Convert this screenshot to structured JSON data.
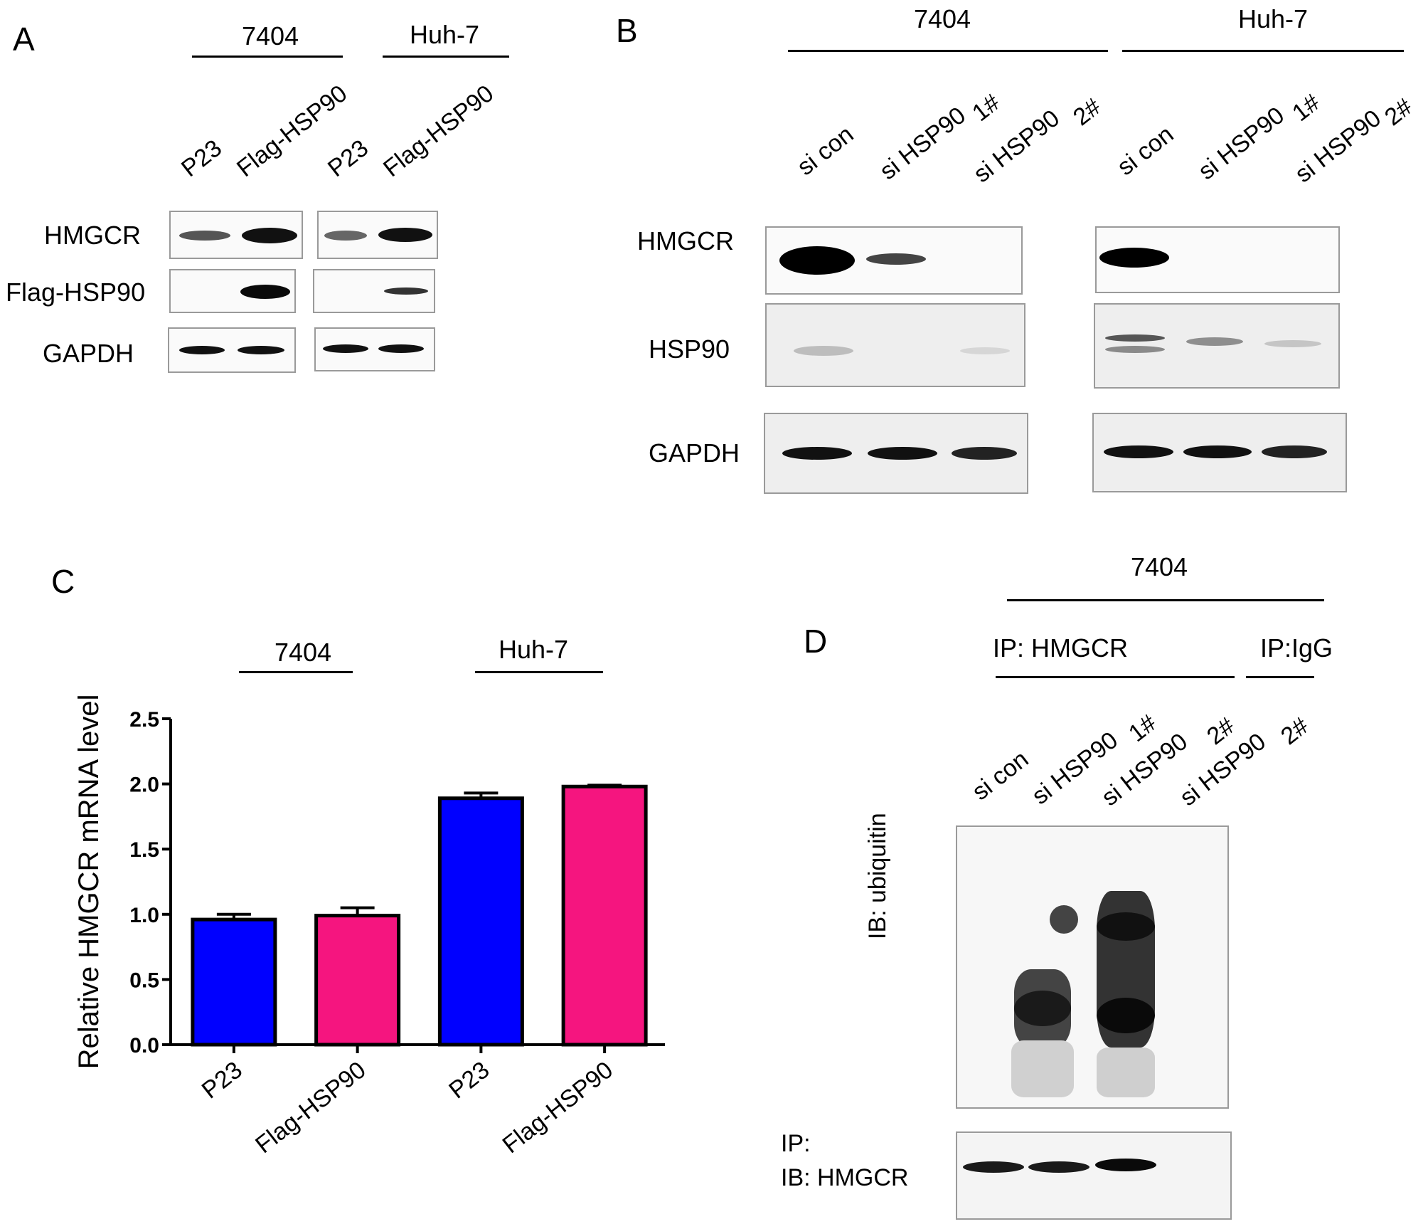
{
  "panel_a": {
    "letter": "A",
    "groups": [
      "7404",
      "Huh-7"
    ],
    "lanes": [
      "P23",
      "Flag-HSP90",
      "P23",
      "Flag-HSP90"
    ],
    "rows": [
      "HMGCR",
      "Flag-HSP90",
      "GAPDH"
    ]
  },
  "panel_b": {
    "letter": "B",
    "groups": [
      "7404",
      "Huh-7"
    ],
    "lanes": [
      "si con",
      "si HSP90",
      "si HSP90",
      "si con",
      "si HSP90",
      "si HSP90"
    ],
    "lane_tags": [
      "1#",
      "2#",
      "1#",
      "2#"
    ],
    "rows": [
      "HMGCR",
      "HSP90",
      "GAPDH"
    ]
  },
  "panel_c": {
    "letter": "C",
    "groups": [
      "7404",
      "Huh-7"
    ]
  },
  "panel_d": {
    "letter": "D",
    "group": "7404",
    "ip_groups": [
      "IP: HMGCR",
      "IP:IgG"
    ],
    "lanes": [
      "si con",
      "si HSP90",
      "si HSP90",
      "si HSP90"
    ],
    "lane_tags": [
      "1#",
      "2#",
      "2#"
    ],
    "side_label": "IB: ubiquitin",
    "bottom_label_1": "IP:",
    "bottom_label_2": "IB: HMGCR"
  },
  "chart_data": {
    "type": "bar",
    "categories": [
      "P23",
      "Flag-HSP90",
      "P23",
      "Flag-HSP90"
    ],
    "values": [
      0.96,
      0.99,
      1.89,
      1.98
    ],
    "errors": [
      0.04,
      0.06,
      0.04,
      0.01
    ],
    "colors": [
      "#0000ff",
      "#f5157f",
      "#0000ff",
      "#f5157f"
    ],
    "ylabel": "Relative HMGCR mRNA level",
    "ylim": [
      0,
      2.5
    ],
    "yticks": [
      "0.0",
      "0.5",
      "1.0",
      "1.5",
      "2.0",
      "2.5"
    ],
    "groups": [
      "7404",
      "Huh-7"
    ]
  }
}
